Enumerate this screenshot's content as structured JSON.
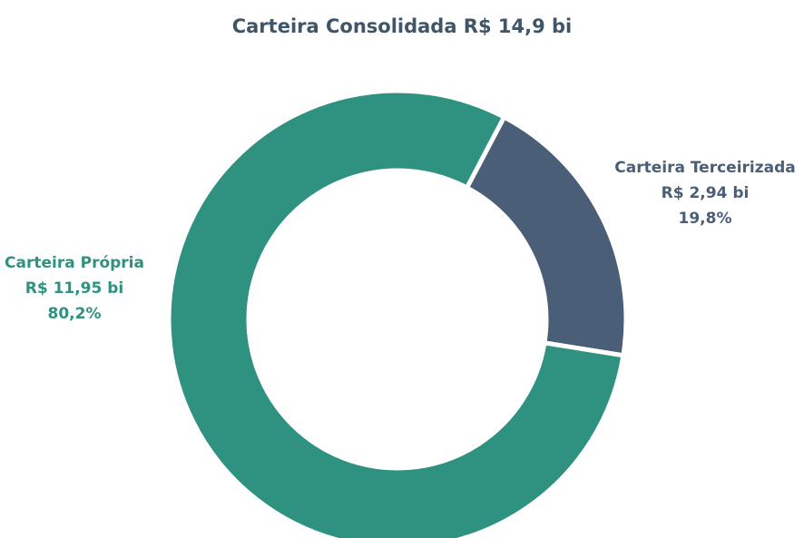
{
  "chart_data": {
    "type": "donut",
    "title": "Carteira Consolidada R$ 14,9 bi",
    "categories": [
      "Carteira Terceirizada",
      "Carteira Própria"
    ],
    "amount_labels": [
      "R$ 2,94 bi",
      "R$ 11,95 bi"
    ],
    "values": [
      19.8,
      80.2
    ],
    "value_labels": [
      "19,8%",
      "80,2%"
    ],
    "colors": [
      "#4a5f77",
      "#2f9180"
    ]
  }
}
